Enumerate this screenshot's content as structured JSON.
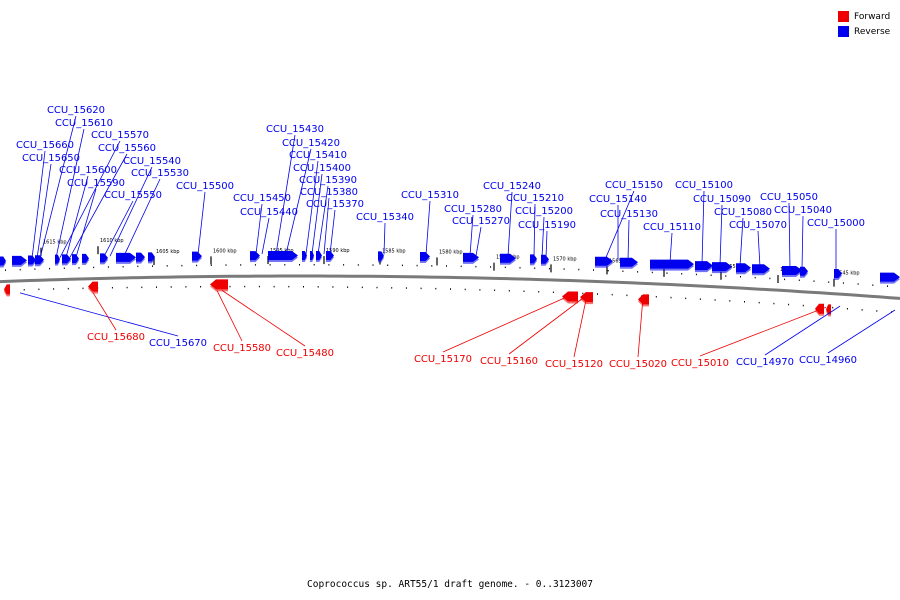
{
  "legend": {
    "forward": {
      "label": "Forward",
      "color": "#ee0000"
    },
    "reverse": {
      "label": "Reverse",
      "color": "#0000ee"
    }
  },
  "caption": "Coprococcus sp. ART55/1 draft genome. - 0..3123007",
  "scale": {
    "unit": "kbp",
    "ticks": [
      "1615 kbp",
      "1610 kbp",
      "1605 kbp",
      "1600 kbp",
      "1595 kbp",
      "1590 kbp",
      "1585 kbp",
      "1580 kbp",
      "1575 kbp",
      "1570 kbp",
      "1565 kbp",
      "1560 kbp",
      "1555 kbp",
      "1550 kbp",
      "1545 kbp"
    ]
  },
  "reverse_genes": [
    "CCU_15620",
    "CCU_15610",
    "CCU_15570",
    "CCU_15560",
    "CCU_15660",
    "CCU_15650",
    "CCU_15540",
    "CCU_15600",
    "CCU_15530",
    "CCU_15590",
    "CCU_15550",
    "CCU_15500",
    "CCU_15430",
    "CCU_15420",
    "CCU_15410",
    "CCU_15400",
    "CCU_15390",
    "CCU_15380",
    "CCU_15450",
    "CCU_15440",
    "CCU_15370",
    "CCU_15340",
    "CCU_15310",
    "CCU_15240",
    "CCU_15280",
    "CCU_15210",
    "CCU_15270",
    "CCU_15200",
    "CCU_15190",
    "CCU_15150",
    "CCU_15140",
    "CCU_15130",
    "CCU_15110",
    "CCU_15100",
    "CCU_15090",
    "CCU_15080",
    "CCU_15070",
    "CCU_15050",
    "CCU_15040",
    "CCU_15000",
    "CCU_15670",
    "CCU_14970",
    "CCU_14960"
  ],
  "forward_genes": [
    "CCU_15680",
    "CCU_15580",
    "CCU_15480",
    "CCU_15170",
    "CCU_15160",
    "CCU_15120",
    "CCU_15020",
    "CCU_15010"
  ]
}
